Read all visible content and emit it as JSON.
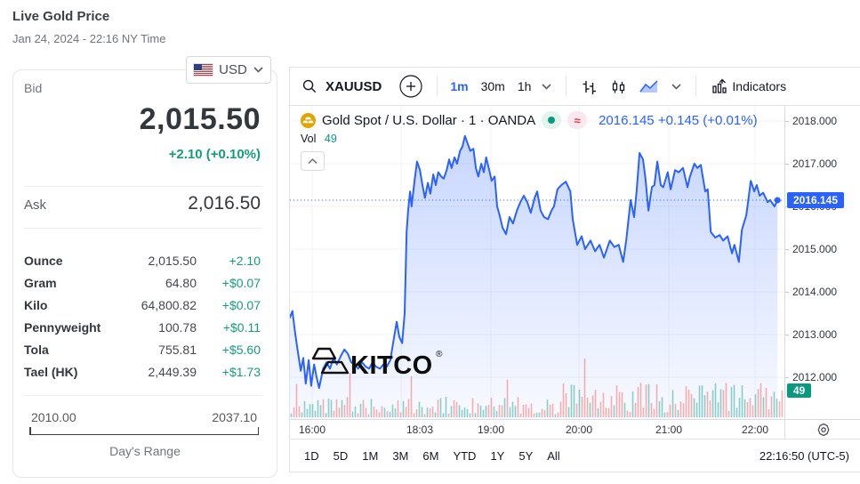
{
  "page": {
    "title": "Live Gold Price",
    "datetime": "Jan 24, 2024 - 22:16 NY Time"
  },
  "quote_card": {
    "currency_label": "USD",
    "bid_label": "Bid",
    "bid_price": "2,015.50",
    "bid_change": "+2.10 (+0.10%)",
    "ask_label": "Ask",
    "ask_price": "2,016.50",
    "rows": [
      {
        "label": "Ounce",
        "value": "2,015.50",
        "change": "+2.10"
      },
      {
        "label": "Gram",
        "value": "64.80",
        "change": "+$0.07"
      },
      {
        "label": "Kilo",
        "value": "64,800.82",
        "change": "+$0.07"
      },
      {
        "label": "Pennyweight",
        "value": "100.78",
        "change": "+$0.11"
      },
      {
        "label": "Tola",
        "value": "755.81",
        "change": "+$5.60"
      },
      {
        "label": "Tael (HK)",
        "value": "2,449.39",
        "change": "+$1.73"
      }
    ],
    "range": {
      "low": "2010.00",
      "high": "2037.10",
      "label": "Day's Range"
    },
    "accent_green": "#149c7e"
  },
  "chart": {
    "toolbar": {
      "symbol": "XAUUSD",
      "intervals": [
        "1m",
        "30m",
        "1h"
      ],
      "active_interval": "1m",
      "indicators_label": "Indicators"
    },
    "legend": {
      "title": "Gold Spot / U.S. Dollar · 1 · OANDA",
      "price": "2016.145",
      "change": "+0.145 (+0.01%)",
      "vol_label": "Vol",
      "vol_value": "49"
    },
    "price_badge": "2016.145",
    "vol_badge": "49",
    "clock": "22:16:50 (UTC-5)",
    "watermark": "KITCO",
    "ranges": [
      "1D",
      "5D",
      "1M",
      "3M",
      "6M",
      "YTD",
      "1Y",
      "5Y",
      "All"
    ],
    "colors": {
      "line_blue": "#2962ff",
      "teal": "#089981",
      "red": "#f23645",
      "grid": "#f0f3fa",
      "vol_up": "rgba(8,153,129,0.45)",
      "vol_down": "rgba(239,83,80,0.45)"
    }
  },
  "chart_data": {
    "type": "area",
    "title": "Gold Spot / U.S. Dollar · 1 · OANDA",
    "last_price": 2016.145,
    "last_change": 0.145,
    "last_change_pct": 0.01,
    "last_volume": 49,
    "ylim": [
      2011.45,
      2018.35
    ],
    "y_axis_prices": [
      "2018.000",
      "2017.000",
      "2016.000",
      "2015.000",
      "2014.000",
      "2013.000",
      "2012.000"
    ],
    "x_labels": [
      {
        "label": "16:00",
        "f": 0.045
      },
      {
        "label": "18:03",
        "f": 0.2626
      },
      {
        "label": "19:00",
        "f": 0.4065
      },
      {
        "label": "20:00",
        "f": 0.5845
      },
      {
        "label": "21:00",
        "f": 0.7662
      },
      {
        "label": "22:00",
        "f": 0.9406
      }
    ],
    "grid_x": [
      0.045,
      0.225,
      0.4065,
      0.5845,
      0.7662,
      0.9406
    ],
    "points": [
      [
        0.0,
        2013.4
      ],
      [
        0.005,
        2013.55
      ],
      [
        0.011,
        2013.0
      ],
      [
        0.016,
        2012.6
      ],
      [
        0.022,
        2012.15
      ],
      [
        0.027,
        2012.45
      ],
      [
        0.032,
        2011.85
      ],
      [
        0.038,
        2012.4
      ],
      [
        0.043,
        2011.8
      ],
      [
        0.049,
        2012.3
      ],
      [
        0.054,
        2012.0
      ],
      [
        0.059,
        2011.75
      ],
      [
        0.067,
        2012.2
      ],
      [
        0.074,
        2012.35
      ],
      [
        0.081,
        2012.2
      ],
      [
        0.088,
        2012.45
      ],
      [
        0.095,
        2012.3
      ],
      [
        0.103,
        2012.5
      ],
      [
        0.11,
        2012.65
      ],
      [
        0.117,
        2012.55
      ],
      [
        0.124,
        2012.35
      ],
      [
        0.131,
        2012.3
      ],
      [
        0.138,
        2012.2
      ],
      [
        0.146,
        2012.35
      ],
      [
        0.153,
        2012.25
      ],
      [
        0.16,
        2012.2
      ],
      [
        0.167,
        2012.35
      ],
      [
        0.174,
        2012.25
      ],
      [
        0.182,
        2012.2
      ],
      [
        0.189,
        2012.3
      ],
      [
        0.196,
        2012.25
      ],
      [
        0.203,
        2012.4
      ],
      [
        0.21,
        2012.9
      ],
      [
        0.216,
        2013.3
      ],
      [
        0.221,
        2012.95
      ],
      [
        0.227,
        2012.8
      ],
      [
        0.232,
        2013.5
      ],
      [
        0.236,
        2015.4
      ],
      [
        0.239,
        2015.9
      ],
      [
        0.243,
        2016.35
      ],
      [
        0.246,
        2016.0
      ],
      [
        0.252,
        2016.6
      ],
      [
        0.257,
        2017.05
      ],
      [
        0.263,
        2016.85
      ],
      [
        0.268,
        2016.5
      ],
      [
        0.273,
        2016.2
      ],
      [
        0.279,
        2016.55
      ],
      [
        0.284,
        2016.3
      ],
      [
        0.29,
        2016.75
      ],
      [
        0.295,
        2016.5
      ],
      [
        0.3,
        2016.8
      ],
      [
        0.306,
        2016.7
      ],
      [
        0.311,
        2016.65
      ],
      [
        0.317,
        2016.85
      ],
      [
        0.322,
        2017.1
      ],
      [
        0.327,
        2016.9
      ],
      [
        0.333,
        2017.15
      ],
      [
        0.338,
        2017.0
      ],
      [
        0.344,
        2017.3
      ],
      [
        0.349,
        2017.4
      ],
      [
        0.354,
        2017.65
      ],
      [
        0.36,
        2017.45
      ],
      [
        0.365,
        2017.3
      ],
      [
        0.371,
        2017.35
      ],
      [
        0.376,
        2016.9
      ],
      [
        0.381,
        2016.7
      ],
      [
        0.387,
        2017.0
      ],
      [
        0.392,
        2016.8
      ],
      [
        0.397,
        2017.15
      ],
      [
        0.403,
        2016.85
      ],
      [
        0.408,
        2016.6
      ],
      [
        0.414,
        2016.7
      ],
      [
        0.419,
        2016.0
      ],
      [
        0.424,
        2015.8
      ],
      [
        0.43,
        2015.5
      ],
      [
        0.437,
        2015.35
      ],
      [
        0.444,
        2015.75
      ],
      [
        0.451,
        2015.6
      ],
      [
        0.459,
        2015.9
      ],
      [
        0.466,
        2016.1
      ],
      [
        0.473,
        2016.25
      ],
      [
        0.48,
        2016.1
      ],
      [
        0.487,
        2015.85
      ],
      [
        0.495,
        2016.2
      ],
      [
        0.5,
        2016.35
      ],
      [
        0.507,
        2015.9
      ],
      [
        0.514,
        2015.75
      ],
      [
        0.522,
        2015.7
      ],
      [
        0.529,
        2015.9
      ],
      [
        0.534,
        2016.0
      ],
      [
        0.541,
        2016.4
      ],
      [
        0.549,
        2016.5
      ],
      [
        0.558,
        2016.58
      ],
      [
        0.567,
        2016.35
      ],
      [
        0.572,
        2015.7
      ],
      [
        0.581,
        2015.1
      ],
      [
        0.59,
        2015.3
      ],
      [
        0.597,
        2015.0
      ],
      [
        0.608,
        2015.2
      ],
      [
        0.617,
        2014.95
      ],
      [
        0.626,
        2015.1
      ],
      [
        0.635,
        2014.8
      ],
      [
        0.647,
        2015.2
      ],
      [
        0.656,
        2015.05
      ],
      [
        0.665,
        2015.1
      ],
      [
        0.674,
        2014.7
      ],
      [
        0.68,
        2015.2
      ],
      [
        0.689,
        2016.15
      ],
      [
        0.696,
        2015.75
      ],
      [
        0.701,
        2016.35
      ],
      [
        0.707,
        2017.25
      ],
      [
        0.714,
        2017.1
      ],
      [
        0.719,
        2016.65
      ],
      [
        0.725,
        2015.9
      ],
      [
        0.732,
        2016.45
      ],
      [
        0.737,
        2016.5
      ],
      [
        0.743,
        2017.05
      ],
      [
        0.75,
        2016.5
      ],
      [
        0.755,
        2016.45
      ],
      [
        0.764,
        2016.8
      ],
      [
        0.77,
        2016.4
      ],
      [
        0.779,
        2016.85
      ],
      [
        0.786,
        2016.8
      ],
      [
        0.795,
        2016.9
      ],
      [
        0.804,
        2016.45
      ],
      [
        0.809,
        2016.7
      ],
      [
        0.818,
        2017.0
      ],
      [
        0.824,
        2016.9
      ],
      [
        0.831,
        2016.97
      ],
      [
        0.84,
        2016.35
      ],
      [
        0.845,
        2016.4
      ],
      [
        0.851,
        2015.4
      ],
      [
        0.86,
        2015.27
      ],
      [
        0.869,
        2015.33
      ],
      [
        0.876,
        2015.2
      ],
      [
        0.885,
        2015.3
      ],
      [
        0.894,
        2014.9
      ],
      [
        0.899,
        2015.1
      ],
      [
        0.908,
        2014.7
      ],
      [
        0.914,
        2015.45
      ],
      [
        0.923,
        2015.8
      ],
      [
        0.932,
        2016.6
      ],
      [
        0.939,
        2016.35
      ],
      [
        0.944,
        2016.5
      ],
      [
        0.95,
        2016.25
      ],
      [
        0.957,
        2016.32
      ],
      [
        0.966,
        2016.1
      ],
      [
        0.971,
        2016.15
      ],
      [
        0.98,
        2016.0
      ],
      [
        0.986,
        2016.145
      ]
    ],
    "volume_bars": {
      "count": 185,
      "seed": 987654321,
      "base_min": 3,
      "base_max": 23,
      "cluster_start_index": 100,
      "cluster_gain": 1.7,
      "spike_chance": 0.05,
      "spike_gain": 2.0,
      "max_height": 66,
      "red_ratio": 0.55,
      "spikes": [
        [
          22,
          50
        ],
        [
          45,
          46
        ],
        [
          110,
          66
        ]
      ]
    }
  }
}
